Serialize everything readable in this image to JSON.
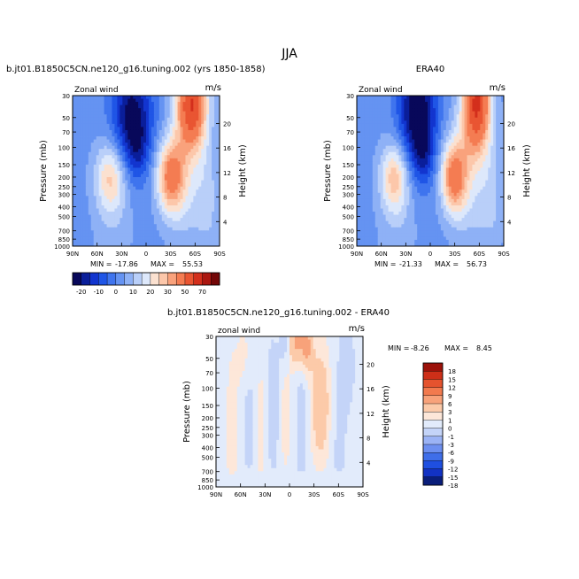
{
  "page": {
    "title": "JJA"
  },
  "palettes": {
    "full": [
      "#08085a",
      "#0a1e9a",
      "#1235cf",
      "#1f55e6",
      "#3f74ee",
      "#6593f2",
      "#8eb1f6",
      "#b9cff9",
      "#dde8fb",
      "#fbe1d0",
      "#fcc7aa",
      "#f9a27c",
      "#f47c52",
      "#e95532",
      "#d32f1c",
      "#ab1710",
      "#730707"
    ],
    "diff": [
      "#0a1e7a",
      "#1232c4",
      "#1f4fe0",
      "#3f6ee9",
      "#6d8ff0",
      "#9bb3f5",
      "#c4d4f8",
      "#e2ebfb",
      "#fde7d9",
      "#fccaa9",
      "#f8a27a",
      "#f27a4e",
      "#e5532e",
      "#cd2f18",
      "#9c120a"
    ]
  },
  "colorbar_top": {
    "labels": [
      "-20",
      "-10",
      "0",
      "10",
      "20",
      "30",
      "50",
      "70"
    ]
  },
  "colorbar_diff": {
    "labels": [
      "18",
      "15",
      "12",
      "9",
      "6",
      "3",
      "1",
      "0",
      "-1",
      "-3",
      "-6",
      "-9",
      "-12",
      "-15",
      "-18"
    ]
  },
  "chart_data": [
    {
      "type": "heatmap",
      "id": "model",
      "title": "b.jt01.B1850C5CN.ne120_g16.tuning.002 (yrs 1850-1858)",
      "variable": "Zonal wind",
      "units": "m/s",
      "xlabel": "",
      "ylabel": "Pressure (mb)",
      "y2label": "Height (km)",
      "x_ticks": [
        "90N",
        "60N",
        "30N",
        "0",
        "30S",
        "60S",
        "90S"
      ],
      "y_ticks": [
        "30",
        "50",
        "70",
        "100",
        "150",
        "200",
        "250",
        "300",
        "400",
        "500",
        "700",
        "850",
        "1000"
      ],
      "y2_ticks": [
        "4",
        "8",
        "12",
        "16",
        "20"
      ],
      "stats": {
        "min_label": "MIN =",
        "min": "-17.86",
        "max_label": "MAX =",
        "max": "55.53"
      },
      "scale": "full",
      "levels": [
        -25,
        -20,
        -15,
        -10,
        -5,
        0,
        5,
        10,
        15,
        20,
        25,
        30,
        40,
        50,
        60,
        70
      ],
      "model": {
        "jets": [
          {
            "lat": 17,
            "p": 50,
            "sx": 17,
            "sy": 0.85,
            "amp": -27
          },
          {
            "lat": 10,
            "p": 110,
            "sx": 9,
            "sy": 0.45,
            "amp": -8
          },
          {
            "lat": -30,
            "p": 200,
            "sx": 12,
            "sy": 0.6,
            "amp": 34
          },
          {
            "lat": -56,
            "p": 35,
            "sx": 13,
            "sy": 0.75,
            "amp": 48
          },
          {
            "lat": -50,
            "p": 180,
            "sx": 15,
            "sy": 1.4,
            "amp": 10
          },
          {
            "lat": 44,
            "p": 200,
            "sx": 13,
            "sy": 0.55,
            "amp": 20
          },
          {
            "lat": 40,
            "p": 520,
            "sx": 16,
            "sy": 1.2,
            "amp": 6
          },
          {
            "lat": -75,
            "p": 350,
            "sx": 10,
            "sy": 1.0,
            "amp": 8
          }
        ],
        "base": -2,
        "surface_damp": 0.55
      }
    },
    {
      "type": "heatmap",
      "id": "era40",
      "title": "ERA40",
      "variable": "Zonal wind",
      "units": "m/s",
      "xlabel": "",
      "ylabel": "Pressure (mb)",
      "y2label": "Height (km)",
      "x_ticks": [
        "90N",
        "60N",
        "30N",
        "0",
        "30S",
        "60S",
        "90S"
      ],
      "y_ticks": [
        "30",
        "50",
        "70",
        "100",
        "150",
        "200",
        "250",
        "300",
        "400",
        "500",
        "700",
        "850",
        "1000"
      ],
      "y2_ticks": [
        "4",
        "8",
        "12",
        "16",
        "20"
      ],
      "stats": {
        "min_label": "MIN =",
        "min": "-21.33",
        "max_label": "MAX =",
        "max": "56.73"
      },
      "scale": "full",
      "levels": [
        -25,
        -20,
        -15,
        -10,
        -5,
        0,
        5,
        10,
        15,
        20,
        25,
        30,
        40,
        50,
        60,
        70
      ],
      "model": {
        "jets": [
          {
            "lat": 16,
            "p": 45,
            "sx": 16,
            "sy": 0.9,
            "amp": -30
          },
          {
            "lat": 8,
            "p": 120,
            "sx": 9,
            "sy": 0.5,
            "amp": -10
          },
          {
            "lat": -29,
            "p": 200,
            "sx": 11,
            "sy": 0.6,
            "amp": 36
          },
          {
            "lat": -57,
            "p": 35,
            "sx": 12,
            "sy": 0.8,
            "amp": 50
          },
          {
            "lat": -50,
            "p": 180,
            "sx": 15,
            "sy": 1.4,
            "amp": 10
          },
          {
            "lat": 44,
            "p": 200,
            "sx": 12,
            "sy": 0.55,
            "amp": 22
          },
          {
            "lat": 40,
            "p": 520,
            "sx": 16,
            "sy": 1.2,
            "amp": 6
          },
          {
            "lat": -75,
            "p": 350,
            "sx": 10,
            "sy": 1.0,
            "amp": 7
          }
        ],
        "base": -2,
        "surface_damp": 0.55
      }
    },
    {
      "type": "heatmap",
      "id": "difference",
      "title": "b.jt01.B1850C5CN.ne120_g16.tuning.002 - ERA40",
      "variable": "zonal wind",
      "units": "m/s",
      "xlabel": "",
      "ylabel": "Pressure (mb)",
      "y2label": "Height (km)",
      "x_ticks": [
        "90N",
        "60N",
        "30N",
        "0",
        "30S",
        "60S",
        "90S"
      ],
      "y_ticks": [
        "30",
        "50",
        "70",
        "100",
        "150",
        "200",
        "250",
        "300",
        "400",
        "500",
        "700",
        "850",
        "1000"
      ],
      "y2_ticks": [
        "4",
        "8",
        "12",
        "16",
        "20"
      ],
      "stats": {
        "min_label": "MIN =",
        "min": "-8.26",
        "max_label": "MAX =",
        "max": "8.45"
      },
      "scale": "diff",
      "levels": [
        -18,
        -15,
        -12,
        -9,
        -6,
        -3,
        -1,
        0,
        1,
        3,
        6,
        9,
        12,
        15,
        18
      ],
      "model": {
        "jets": [
          {
            "lat": -38,
            "p": 150,
            "sx": 8,
            "sy": 0.9,
            "amp": 6
          },
          {
            "lat": -8,
            "p": 35,
            "sx": 10,
            "sy": 0.4,
            "amp": 7
          },
          {
            "lat": 5,
            "p": 35,
            "sx": 5,
            "sy": 0.4,
            "amp": -5
          },
          {
            "lat": -22,
            "p": 40,
            "sx": 5,
            "sy": 0.4,
            "amp": 5
          },
          {
            "lat": 70,
            "p": 300,
            "sx": 6,
            "sy": 1.5,
            "amp": 2
          },
          {
            "lat": 50,
            "p": 200,
            "sx": 6,
            "sy": 1.2,
            "amp": -2
          },
          {
            "lat": 35,
            "p": 300,
            "sx": 5,
            "sy": 1.3,
            "amp": 2
          },
          {
            "lat": 20,
            "p": 150,
            "sx": 6,
            "sy": 1.2,
            "amp": -2.5
          },
          {
            "lat": 5,
            "p": 200,
            "sx": 5,
            "sy": 1.0,
            "amp": 2
          },
          {
            "lat": -15,
            "p": 250,
            "sx": 6,
            "sy": 1.4,
            "amp": -2
          },
          {
            "lat": -60,
            "p": 500,
            "sx": 8,
            "sy": 1.2,
            "amp": -1.5
          },
          {
            "lat": -70,
            "p": 60,
            "sx": 8,
            "sy": 0.8,
            "amp": -2
          },
          {
            "lat": 55,
            "p": 50,
            "sx": 6,
            "sy": 0.6,
            "amp": 2
          }
        ],
        "base": 0,
        "surface_damp": 0.9
      }
    }
  ]
}
